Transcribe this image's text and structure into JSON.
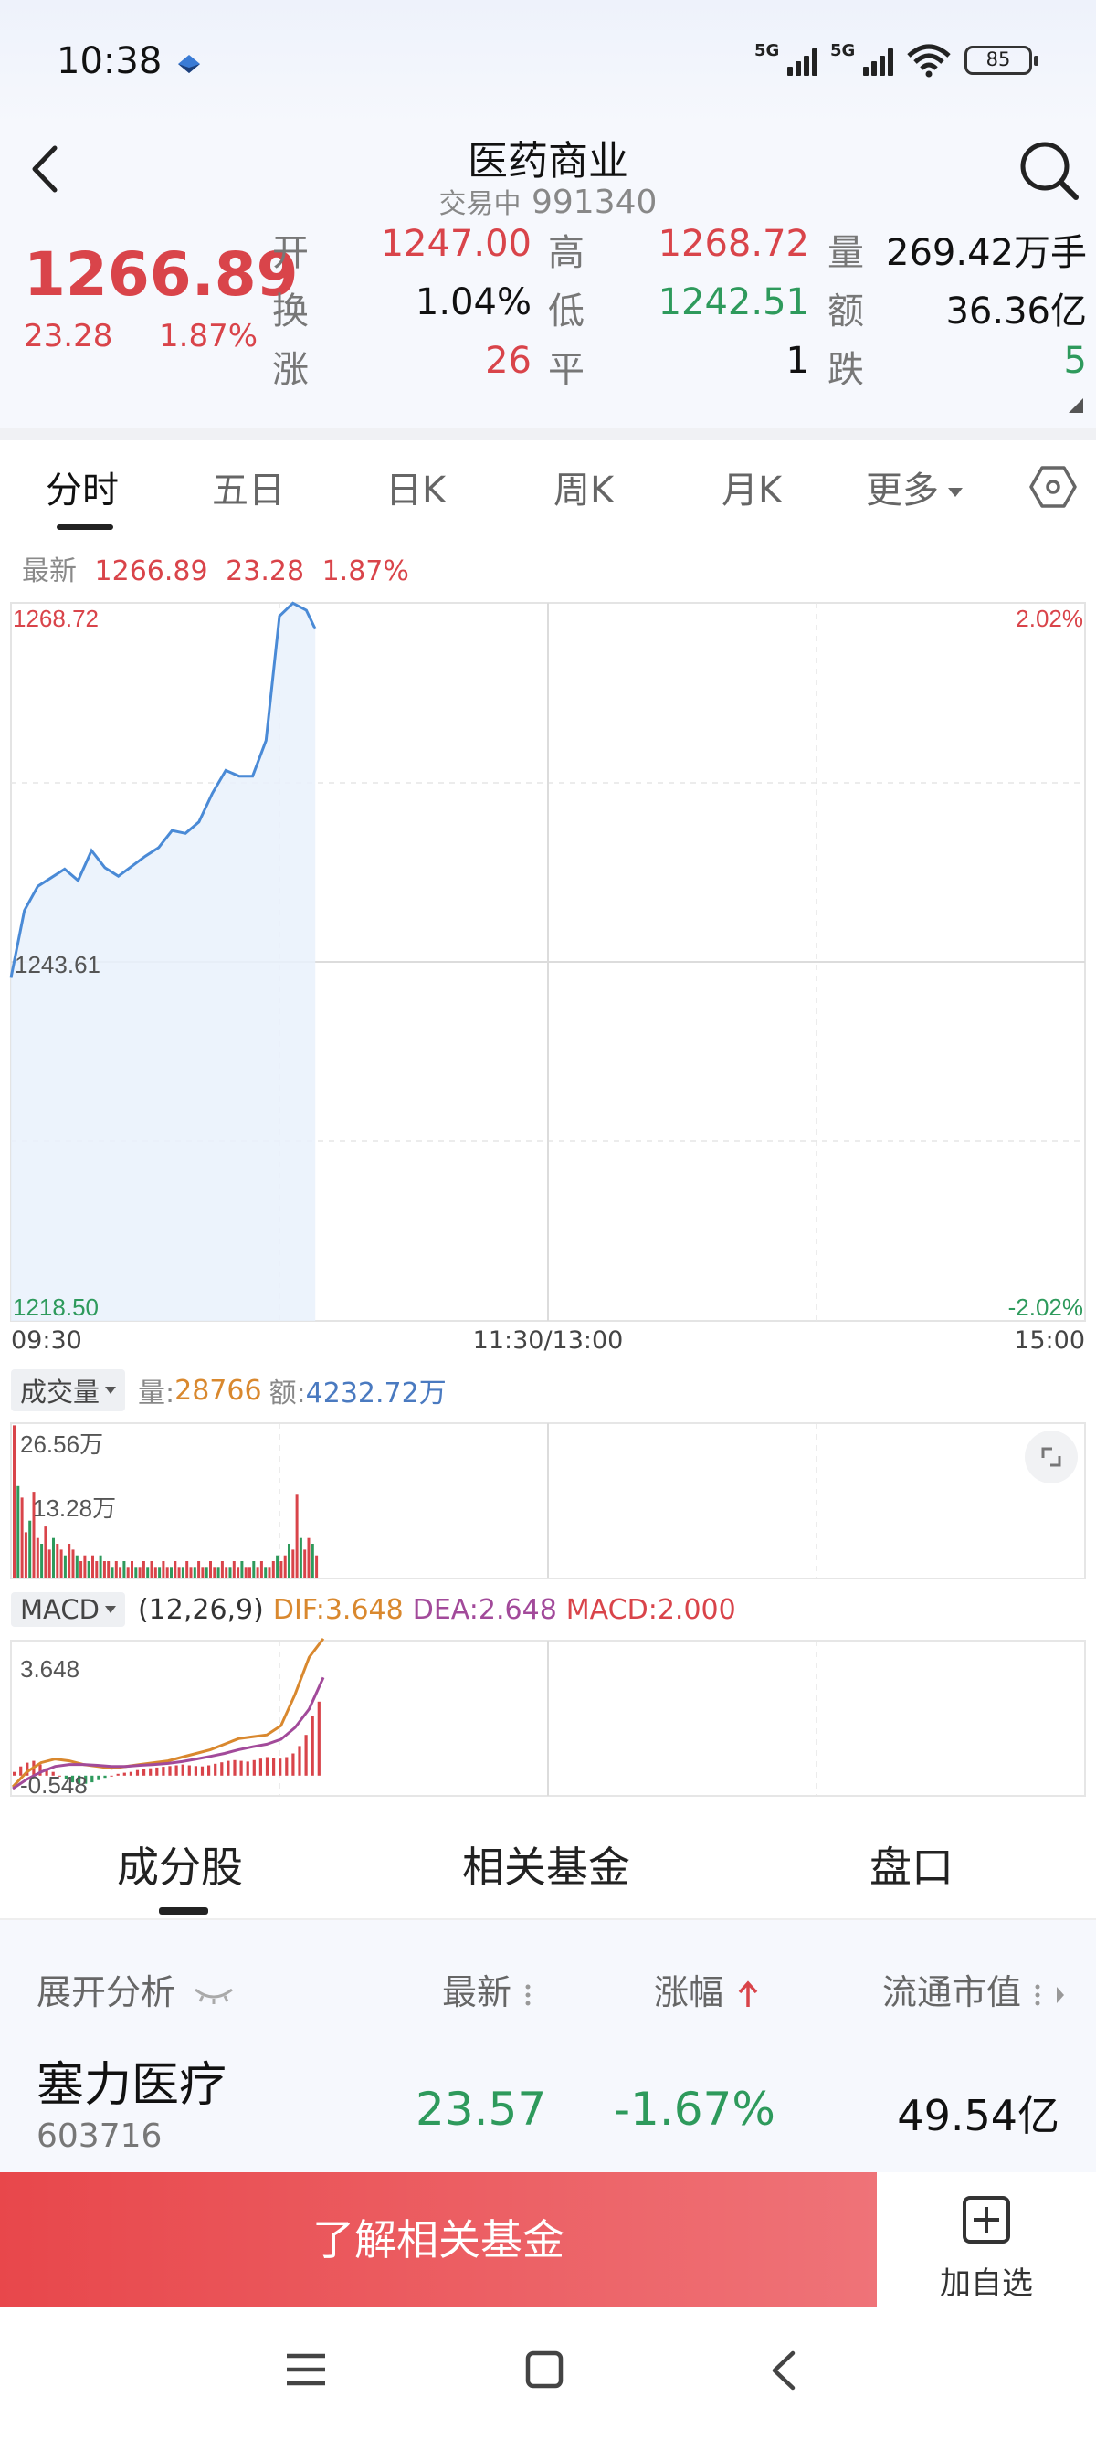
{
  "status_bar": {
    "time": "10:38",
    "signal1_label": "5G",
    "signal2_label": "5G",
    "battery": "85"
  },
  "header": {
    "title": "医药商业",
    "status": "交易中",
    "code": "991340"
  },
  "quote": {
    "price": "1266.89",
    "change": "23.28",
    "change_pct": "1.87%",
    "open_label": "开",
    "open": "1247.00",
    "high_label": "高",
    "high": "1268.72",
    "volume_label": "量",
    "volume": "269.42万手",
    "turnover_label": "换",
    "turnover": "1.04%",
    "low_label": "低",
    "low": "1242.51",
    "amount_label": "额",
    "amount": "36.36亿",
    "up_label": "涨",
    "up": "26",
    "flat_label": "平",
    "flat": "1",
    "down_label": "跌",
    "down": "5"
  },
  "tabs": {
    "t1": "分时",
    "t2": "五日",
    "t3": "日K",
    "t4": "周K",
    "t5": "月K",
    "more": "更多"
  },
  "latest": {
    "label": "最新",
    "price": "1266.89",
    "change": "23.28",
    "pct": "1.87%"
  },
  "chart_data": {
    "type": "line",
    "series": [
      {
        "x": [
          "09:30",
          "09:33",
          "09:36",
          "09:39",
          "09:42",
          "09:45",
          "09:48",
          "09:51",
          "09:54",
          "09:57",
          "10:00",
          "10:03",
          "10:06",
          "10:09",
          "10:12",
          "10:15",
          "10:18",
          "10:21",
          "10:24",
          "10:27",
          "10:30",
          "10:33",
          "10:36",
          "10:38"
        ],
        "values": [
          1242.5,
          1247.2,
          1248.9,
          1249.5,
          1250.1,
          1249.3,
          1251.4,
          1250.2,
          1249.6,
          1250.3,
          1251.0,
          1251.6,
          1252.8,
          1252.6,
          1253.4,
          1255.4,
          1257.0,
          1256.6,
          1256.6,
          1259.1,
          1267.8,
          1268.7,
          1268.2,
          1266.89
        ]
      }
    ],
    "ylim": [
      1218.5,
      1268.72
    ],
    "y_ticks": [
      "1268.72",
      "1243.61",
      "1218.50"
    ],
    "pct_ticks": [
      "2.02%",
      "-2.02%"
    ],
    "x_ticks": [
      "09:30",
      "11:30/13:00",
      "15:00"
    ],
    "volume": {
      "label": "成交量",
      "vol_label": "量:",
      "vol": "28766",
      "amt_label": "额:",
      "amt": "4232.72万",
      "y_ticks": [
        "26.56万",
        "13.28万"
      ],
      "ymax": 26.56,
      "bars": [
        26.5,
        16.0,
        14.0,
        8.0,
        10.0,
        15.0,
        7.0,
        6.0,
        9.0,
        5.0,
        7.0,
        6.0,
        5.0,
        4.0,
        6.0,
        5.0,
        4.0,
        3.0,
        4.0,
        3.0,
        4.0,
        3.0,
        4.0,
        3.0,
        3.0,
        2.0,
        3.0,
        2.0,
        3.0,
        2.0,
        3.0,
        2.0,
        2.0,
        3.0,
        2.0,
        3.0,
        2.0,
        2.0,
        3.0,
        2.0,
        2.0,
        3.0,
        2.0,
        2.0,
        3.0,
        2.0,
        2.0,
        3.0,
        2.0,
        2.0,
        3.0,
        2.0,
        2.0,
        3.0,
        2.0,
        2.0,
        3.0,
        2.0,
        3.0,
        2.0,
        2.0,
        3.0,
        2.0,
        3.0,
        2.0,
        2.0,
        3.0,
        4.0,
        3.0,
        4.0,
        6.0,
        5.0,
        14.5,
        7.0,
        5.0,
        7.0,
        6.0,
        4.0
      ]
    },
    "macd": {
      "label": "MACD",
      "params": "(12,26,9)",
      "dif_label": "DIF:",
      "dif": "3.648",
      "dea_label": "DEA:",
      "dea": "2.648",
      "macd_label": "MACD:",
      "macd": "2.000",
      "y_ticks": [
        "3.648",
        "-0.548"
      ],
      "ylim": [
        -0.548,
        3.648
      ],
      "dif_series": [
        -0.3,
        0.1,
        0.35,
        0.45,
        0.4,
        0.3,
        0.25,
        0.2,
        0.25,
        0.3,
        0.35,
        0.4,
        0.5,
        0.6,
        0.7,
        0.85,
        1.0,
        1.05,
        1.1,
        1.35,
        2.2,
        3.2,
        3.7
      ],
      "dea_series": [
        -0.35,
        -0.1,
        0.1,
        0.25,
        0.3,
        0.3,
        0.28,
        0.25,
        0.25,
        0.28,
        0.3,
        0.33,
        0.38,
        0.45,
        0.52,
        0.6,
        0.7,
        0.78,
        0.85,
        0.98,
        1.3,
        1.8,
        2.65
      ],
      "hist": [
        0.1,
        0.25,
        0.35,
        0.4,
        0.3,
        0.2,
        0.1,
        0.0,
        -0.1,
        -0.18,
        -0.22,
        -0.22,
        -0.18,
        -0.12,
        -0.06,
        0.0,
        0.05,
        0.08,
        0.1,
        0.15,
        0.18,
        0.2,
        0.22,
        0.24,
        0.26,
        0.28,
        0.3,
        0.28,
        0.26,
        0.25,
        0.28,
        0.32,
        0.36,
        0.4,
        0.42,
        0.4,
        0.38,
        0.42,
        0.46,
        0.5,
        0.48,
        0.46,
        0.5,
        0.6,
        0.8,
        1.1,
        1.6,
        2.0
      ]
    }
  },
  "bottom_tabs": {
    "t1": "成分股",
    "t2": "相关基金",
    "t3": "盘口"
  },
  "list": {
    "col_expand": "展开分析",
    "col_latest": "最新",
    "col_change": "涨幅",
    "col_cap": "流通市值",
    "rows": [
      {
        "name": "塞力医疗",
        "code": "603716",
        "price": "23.57",
        "pct": "-1.67%",
        "cap": "49.54亿"
      }
    ]
  },
  "actions": {
    "fund": "了解相关基金",
    "watch": "加自选"
  }
}
